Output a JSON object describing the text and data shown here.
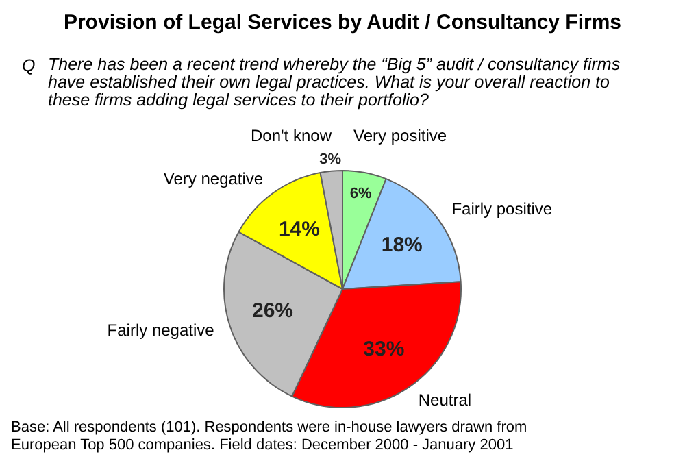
{
  "chart_data": {
    "type": "pie",
    "title": "Provision of Legal Services by Audit / Consultancy Firms",
    "subtitle": "There has been a recent trend whereby the “Big 5” audit / consultancy firms have established their own legal practices. What is your overall reaction to these firms adding legal services to their portfolio?",
    "categories": [
      "Very positive",
      "Fairly positive",
      "Neutral",
      "Fairly negative",
      "Very negative",
      "Don't know"
    ],
    "values": [
      6,
      18,
      33,
      26,
      14,
      3
    ],
    "value_labels": [
      "6%",
      "18%",
      "33%",
      "26%",
      "14%",
      "3%"
    ],
    "colors": [
      "#99ff99",
      "#99ccff",
      "#ff0000",
      "#c0c0c0",
      "#ffff00",
      "#c0c0c0"
    ],
    "annotations": [
      "Q",
      "Base: All respondents (101). Respondents were in-house lawyers drawn from European Top 500 companies. Field dates:  December 2000 - January 2001"
    ],
    "legend": false
  }
}
